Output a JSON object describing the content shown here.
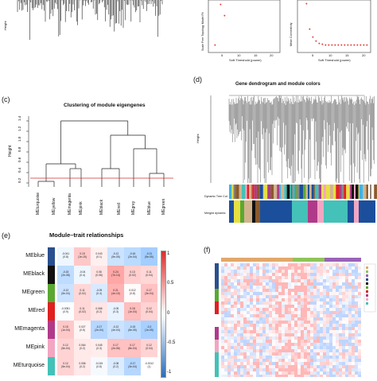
{
  "panel_a": {
    "ylabel": "Height"
  },
  "panel_b": {
    "left_ylabel": "Scale Free Topology Model Fit",
    "left_xlabel": "Soft Threshold (power)",
    "left_xticks": [
      "5",
      "10",
      "15",
      "20"
    ],
    "right_ylabel": "Mean Connectivity",
    "right_xlabel": "Soft Threshold (power)",
    "right_xticks": [
      "5",
      "10",
      "15",
      "20"
    ]
  },
  "panel_c": {
    "label": "(c)",
    "title": "Clustering of module eigengenes",
    "ylabel": "Height",
    "yticks": [
      "0.2",
      "0.4",
      "0.6",
      "0.8",
      "1.0",
      "1.2",
      "1.4"
    ],
    "leaves": [
      "MEturquoise",
      "MEyellow",
      "MEmagenta",
      "MEpink",
      "MEblack",
      "MEred",
      "MEgrey",
      "MEblue",
      "MEgreen"
    ]
  },
  "panel_d": {
    "label": "(d)",
    "title": "Gene dendrogram and module colors",
    "ylabel": "Height",
    "bar1_label": "Dynamic Tree Cut",
    "bar2_label": "Merged dynamic"
  },
  "panel_e": {
    "label": "(e)",
    "title": "Module–trait relationships",
    "rows": [
      {
        "name": "MEblue",
        "color": "#2a4f8f",
        "cells": [
          "-0.041\n(0.8)",
          "0.15\n(1e-15)",
          "0.043\n(0.1)",
          "-0.12\n(5e-05)",
          "-0.16\n(2e-04)",
          "-0.21\n(5e-05)"
        ]
      },
      {
        "name": "MEblack",
        "color": "#111111",
        "cells": [
          "-0.15\n(2e-08)",
          "-0.04\n(0.4)",
          "0.08\n(0.08)",
          "0.24\n(7e-14)",
          "0.13\n(0.02)",
          "0.11\n(0.04)"
        ]
      },
      {
        "name": "MEgreen",
        "color": "#5aa832",
        "cells": [
          "-0.12\n(5e-04)",
          "0.11\n(0.02)",
          "-0.09\n(0.4)",
          "0.21\n(4e-10)",
          "0.012\n(0.8)",
          "0.17\n(3e-04)"
        ]
      },
      {
        "name": "MEred",
        "color": "#e02020",
        "cells": [
          "-0.0051\n(0.9)",
          "0.11\n(0.02)",
          "0.066\n(0.2)",
          "-0.05\n(0.3)",
          "0.18\n(1e-04)",
          "0.12\n(0.04)"
        ]
      },
      {
        "name": "MEmagenta",
        "color": "#b03a8a",
        "cells": [
          "0.15\n(1e-04)",
          "0.027\n(0.5)",
          "-0.17\n(2e-04)",
          "-0.12\n(4e-04)",
          "-0.15\n(8e-05)",
          "-0.2\n(1e-05)"
        ]
      },
      {
        "name": "MEpink",
        "color": "#f2a6c2",
        "cells": [
          "0.12\n(5e-04)",
          "0.064\n(0.2)",
          "0.045\n(0.3)",
          "0.17\n(2e-06)",
          "0.17\n(8e-04)",
          "0.12\n(0.04)"
        ]
      },
      {
        "name": "MEturquoise",
        "color": "#44c1b8",
        "cells": [
          "0.12\n(5e-04)",
          "0.056\n(0.2)",
          "-0.015\n(0.8)",
          "-0.08\n(0.2)",
          "-0.17\n(3e-04)",
          "-0.0012\n(1)"
        ]
      }
    ],
    "heat": [
      [
        -0.04,
        0.15,
        0.04,
        -0.12,
        -0.16,
        -0.21
      ],
      [
        -0.15,
        -0.04,
        0.08,
        0.24,
        0.13,
        0.11
      ],
      [
        -0.12,
        0.11,
        -0.09,
        0.21,
        0.01,
        0.17
      ],
      [
        -0.01,
        0.11,
        0.07,
        -0.05,
        0.18,
        0.12
      ],
      [
        0.15,
        0.03,
        -0.17,
        -0.12,
        -0.15,
        -0.2
      ],
      [
        0.12,
        0.06,
        0.05,
        0.17,
        0.17,
        0.12
      ],
      [
        0.12,
        0.06,
        -0.02,
        -0.08,
        -0.17,
        0
      ]
    ],
    "legend_ticks": [
      "1",
      "0.5",
      "0",
      "-0.5",
      "-1"
    ]
  },
  "panel_f": {
    "label": "(f)"
  }
}
